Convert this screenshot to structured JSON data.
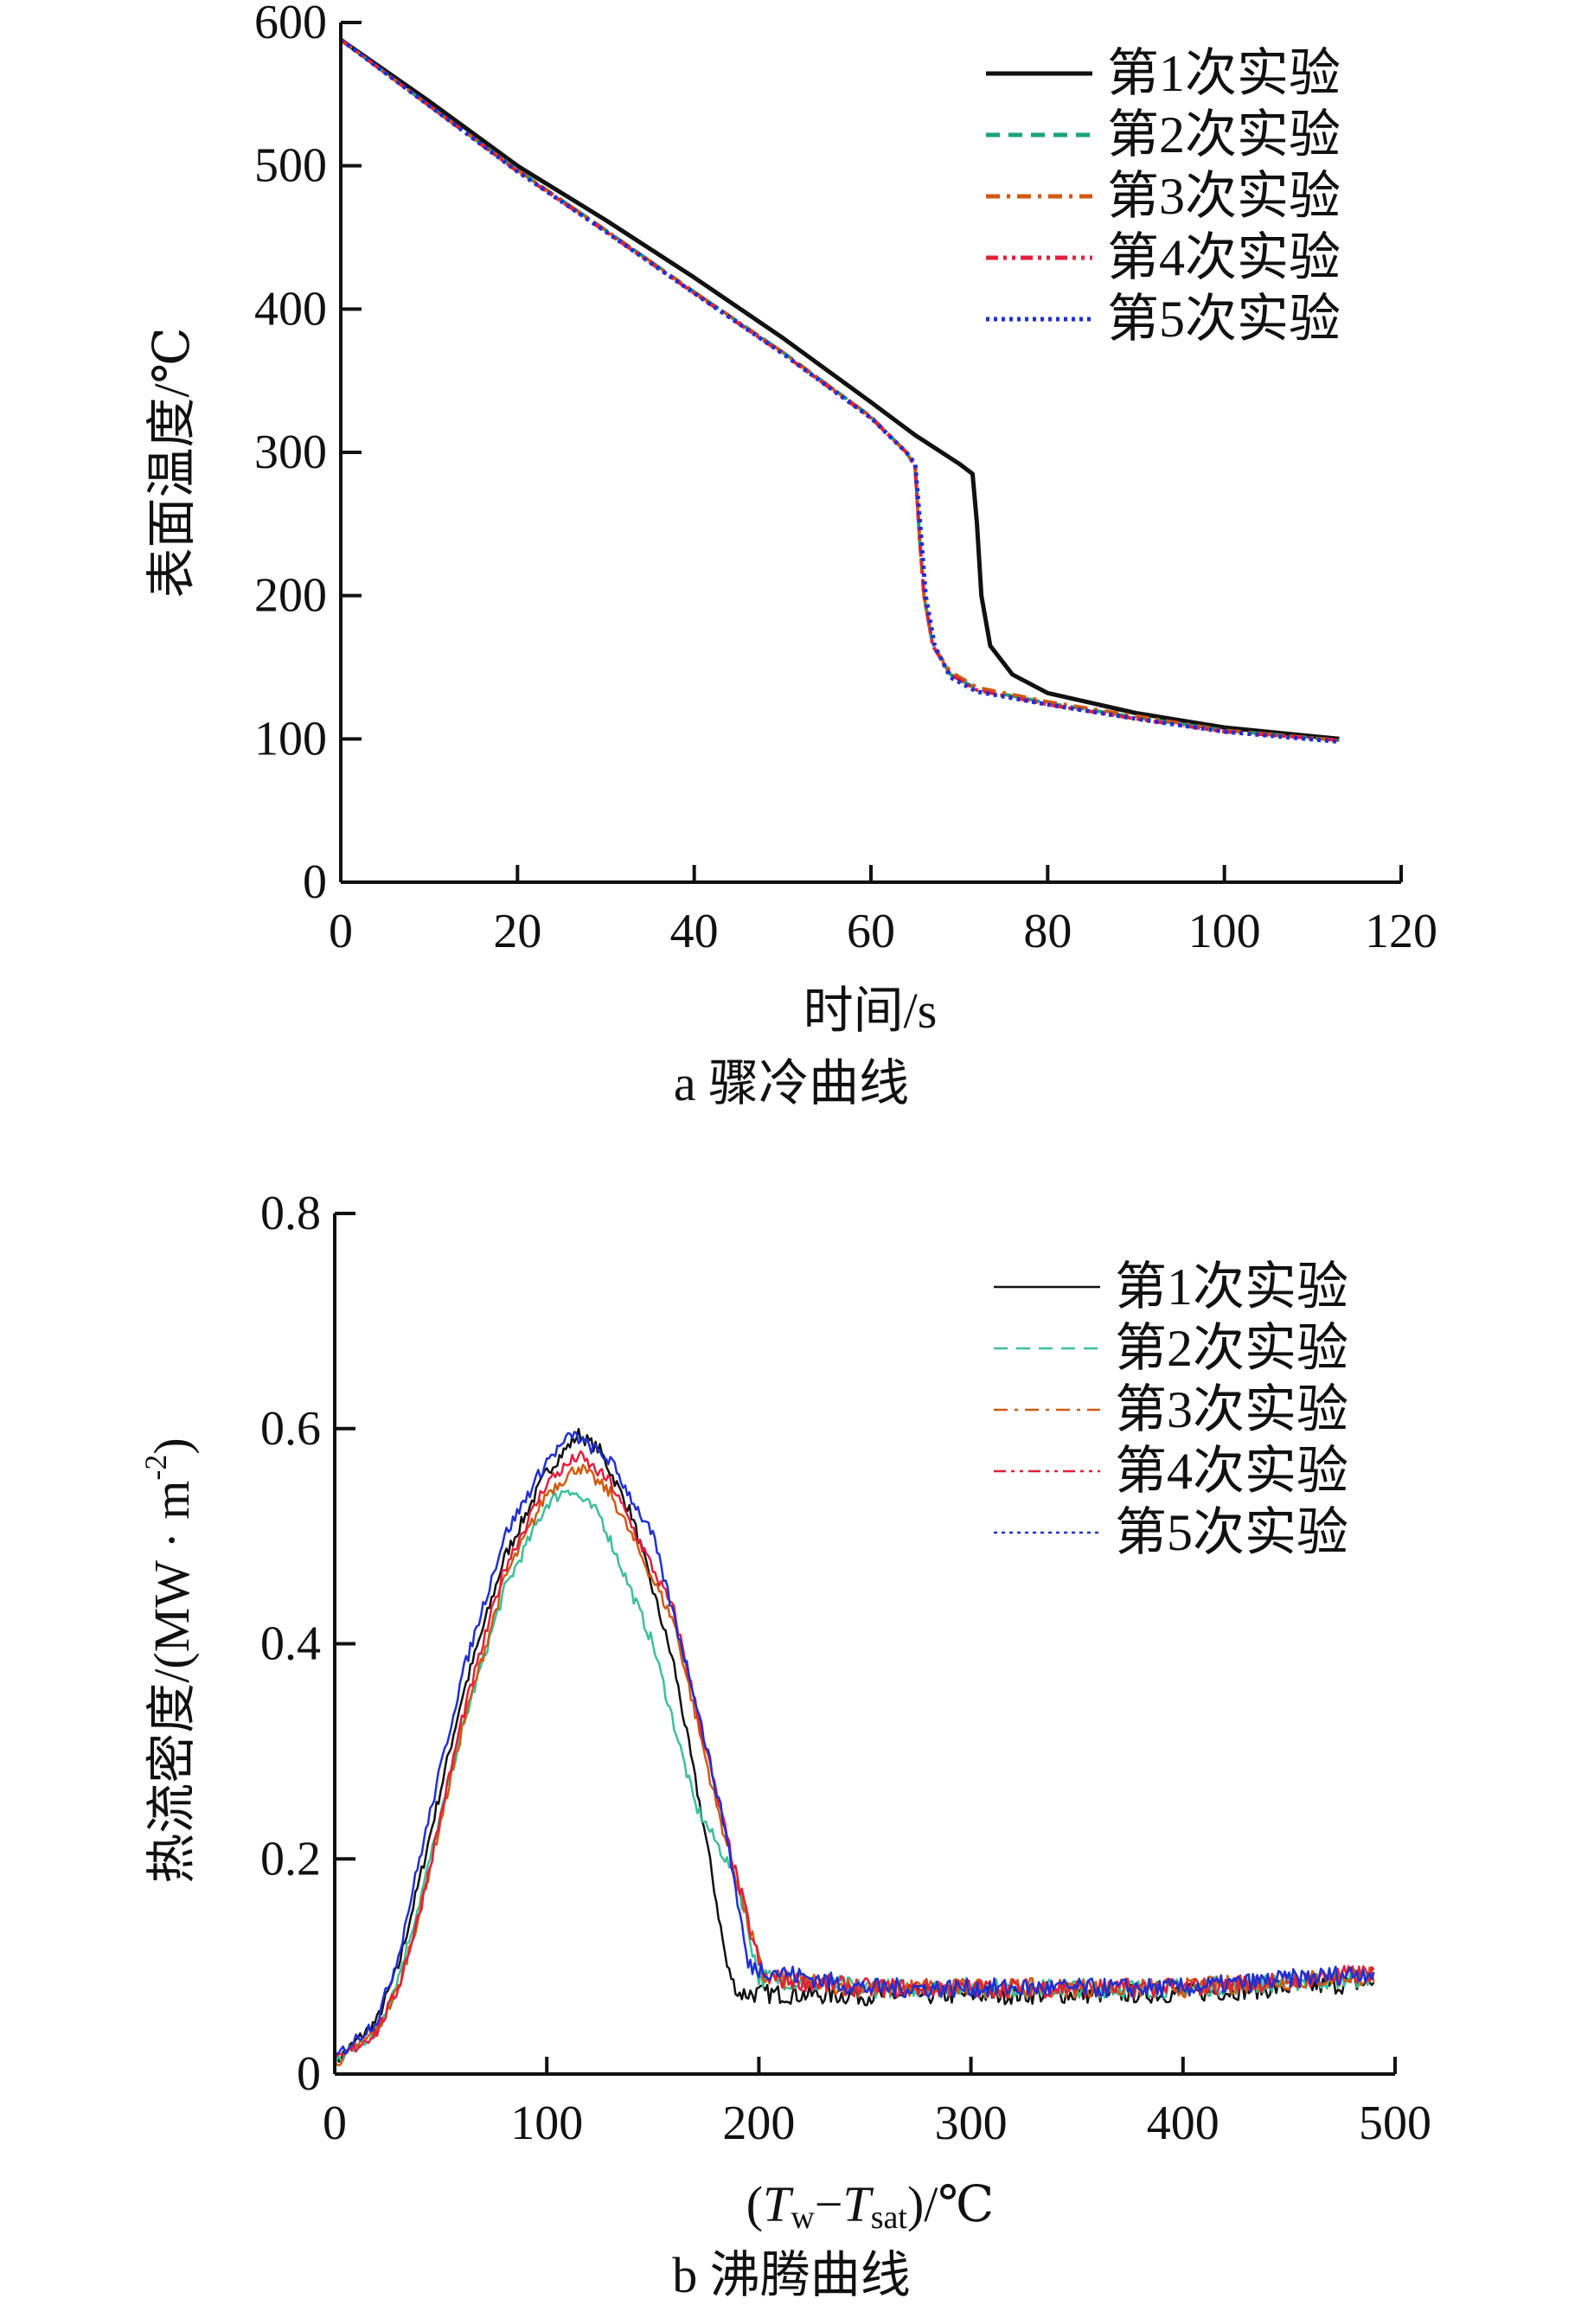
{
  "chart_data": [
    {
      "type": "line",
      "caption": "a  骤冷曲线",
      "xlabel": "时间/s",
      "ylabel": "表面温度/℃",
      "xlim": [
        0,
        120
      ],
      "ylim": [
        0,
        600
      ],
      "xticks": [
        0,
        20,
        40,
        60,
        80,
        100,
        120
      ],
      "yticks": [
        0,
        100,
        200,
        300,
        400,
        500,
        600
      ],
      "grid": false,
      "legend_position": "top-right",
      "series": [
        {
          "name": "第1次实验",
          "color": "#111111",
          "dash": "solid",
          "points": [
            [
              0,
              588
            ],
            [
              10,
              545
            ],
            [
              20,
              500
            ],
            [
              30,
              462
            ],
            [
              40,
              422
            ],
            [
              50,
              380
            ],
            [
              60,
              335
            ],
            [
              65,
              312
            ],
            [
              70,
              292
            ],
            [
              71.5,
              285
            ],
            [
              72,
              250
            ],
            [
              72.5,
              200
            ],
            [
              73.5,
              165
            ],
            [
              76,
              145
            ],
            [
              80,
              132
            ],
            [
              90,
              118
            ],
            [
              100,
              108
            ],
            [
              113,
              100
            ]
          ]
        },
        {
          "name": "第2次实验",
          "color": "#1aa37a",
          "dash": "dashed",
          "points": [
            [
              0,
              588
            ],
            [
              10,
              542
            ],
            [
              20,
              497
            ],
            [
              30,
              455
            ],
            [
              40,
              412
            ],
            [
              50,
              370
            ],
            [
              60,
              325
            ],
            [
              64,
              300
            ],
            [
              65,
              290
            ],
            [
              65.5,
              240
            ],
            [
              66,
              200
            ],
            [
              67,
              165
            ],
            [
              69,
              145
            ],
            [
              72,
              135
            ],
            [
              80,
              125
            ],
            [
              90,
              115
            ],
            [
              100,
              106
            ],
            [
              113,
              99
            ]
          ]
        },
        {
          "name": "第3次实验",
          "color": "#d05a10",
          "dash": "dashdot",
          "points": [
            [
              0,
              588
            ],
            [
              10,
              542
            ],
            [
              20,
              497
            ],
            [
              30,
              455
            ],
            [
              40,
              412
            ],
            [
              50,
              370
            ],
            [
              60,
              325
            ],
            [
              64,
              300
            ],
            [
              65,
              290
            ],
            [
              65.5,
              240
            ],
            [
              66,
              200
            ],
            [
              67,
              165
            ],
            [
              69,
              147
            ],
            [
              72,
              136
            ],
            [
              80,
              126
            ],
            [
              90,
              116
            ],
            [
              100,
              106
            ],
            [
              113,
              99
            ]
          ]
        },
        {
          "name": "第4次实验",
          "color": "#e0203c",
          "dash": "dashdotdot",
          "points": [
            [
              0,
              588
            ],
            [
              10,
              542
            ],
            [
              20,
              496
            ],
            [
              30,
              454
            ],
            [
              40,
              411
            ],
            [
              50,
              369
            ],
            [
              60,
              324
            ],
            [
              64,
              300
            ],
            [
              65,
              290
            ],
            [
              65.5,
              240
            ],
            [
              66,
              200
            ],
            [
              67,
              165
            ],
            [
              69,
              145
            ],
            [
              72,
              134
            ],
            [
              80,
              124
            ],
            [
              90,
              114
            ],
            [
              100,
              105
            ],
            [
              113,
              99
            ]
          ]
        },
        {
          "name": "第5次实验",
          "color": "#2030d0",
          "dash": "dotted",
          "points": [
            [
              0,
              588
            ],
            [
              10,
              542
            ],
            [
              20,
              496
            ],
            [
              30,
              454
            ],
            [
              40,
              411
            ],
            [
              50,
              369
            ],
            [
              60,
              324
            ],
            [
              64,
              300
            ],
            [
              65,
              292
            ],
            [
              65.7,
              240
            ],
            [
              66.2,
              200
            ],
            [
              67.2,
              165
            ],
            [
              69,
              143
            ],
            [
              72,
              133
            ],
            [
              80,
              124
            ],
            [
              90,
              114
            ],
            [
              100,
              105
            ],
            [
              113,
              98
            ]
          ]
        }
      ]
    },
    {
      "type": "line",
      "caption": "b  沸腾曲线",
      "xlabel_parts": [
        "(",
        "T",
        "w",
        "−",
        "T",
        "sat",
        ")/℃"
      ],
      "ylabel": "热流密度/(MW · m",
      "ylabel_sup": "-2",
      "ylabel_end": ")",
      "xlim": [
        0,
        500
      ],
      "ylim": [
        0,
        0.8
      ],
      "xticks": [
        0,
        100,
        200,
        300,
        400,
        500
      ],
      "yticks": [
        "0",
        "0.2",
        "0.4",
        "0.6",
        "0.8"
      ],
      "grid": false,
      "legend_position": "top-right",
      "series": [
        {
          "name": "第1次实验",
          "color": "#111111",
          "dash": "solid",
          "points": [
            [
              0,
              0.01
            ],
            [
              20,
              0.05
            ],
            [
              30,
              0.1
            ],
            [
              40,
              0.18
            ],
            [
              60,
              0.35
            ],
            [
              80,
              0.48
            ],
            [
              100,
              0.56
            ],
            [
              115,
              0.595
            ],
            [
              125,
              0.58
            ],
            [
              140,
              0.52
            ],
            [
              160,
              0.38
            ],
            [
              175,
              0.22
            ],
            [
              185,
              0.1
            ],
            [
              190,
              0.075
            ],
            [
              250,
              0.073
            ],
            [
              400,
              0.075
            ],
            [
              490,
              0.085
            ]
          ]
        },
        {
          "name": "第2次实验",
          "color": "#3cbf9a",
          "dash": "dashed",
          "points": [
            [
              0,
              0.01
            ],
            [
              20,
              0.04
            ],
            [
              30,
              0.09
            ],
            [
              40,
              0.16
            ],
            [
              60,
              0.32
            ],
            [
              80,
              0.45
            ],
            [
              100,
              0.53
            ],
            [
              110,
              0.545
            ],
            [
              125,
              0.52
            ],
            [
              150,
              0.4
            ],
            [
              170,
              0.25
            ],
            [
              190,
              0.18
            ],
            [
              200,
              0.09
            ],
            [
              250,
              0.08
            ],
            [
              400,
              0.08
            ],
            [
              490,
              0.09
            ]
          ]
        },
        {
          "name": "第3次实验",
          "color": "#d05a10",
          "dash": "dashdot",
          "points": [
            [
              0,
              0.01
            ],
            [
              20,
              0.04
            ],
            [
              30,
              0.08
            ],
            [
              40,
              0.15
            ],
            [
              60,
              0.32
            ],
            [
              80,
              0.46
            ],
            [
              100,
              0.54
            ],
            [
              115,
              0.565
            ],
            [
              130,
              0.54
            ],
            [
              160,
              0.42
            ],
            [
              180,
              0.25
            ],
            [
              195,
              0.14
            ],
            [
              202,
              0.09
            ],
            [
              250,
              0.08
            ],
            [
              400,
              0.08
            ],
            [
              490,
              0.092
            ]
          ]
        },
        {
          "name": "第4次实验",
          "color": "#e0203c",
          "dash": "dashdotdot",
          "points": [
            [
              0,
              0.01
            ],
            [
              20,
              0.04
            ],
            [
              30,
              0.08
            ],
            [
              40,
              0.15
            ],
            [
              60,
              0.33
            ],
            [
              80,
              0.47
            ],
            [
              100,
              0.55
            ],
            [
              115,
              0.575
            ],
            [
              130,
              0.55
            ],
            [
              160,
              0.43
            ],
            [
              180,
              0.26
            ],
            [
              195,
              0.14
            ],
            [
              202,
              0.09
            ],
            [
              250,
              0.08
            ],
            [
              400,
              0.08
            ],
            [
              490,
              0.094
            ]
          ]
        },
        {
          "name": "第5次实验",
          "color": "#2030d0",
          "dash": "dotted",
          "points": [
            [
              0,
              0.015
            ],
            [
              20,
              0.05
            ],
            [
              30,
              0.11
            ],
            [
              40,
              0.2
            ],
            [
              60,
              0.37
            ],
            [
              80,
              0.5
            ],
            [
              100,
              0.57
            ],
            [
              112,
              0.595
            ],
            [
              130,
              0.57
            ],
            [
              150,
              0.5
            ],
            [
              170,
              0.35
            ],
            [
              185,
              0.22
            ],
            [
              195,
              0.1
            ],
            [
              250,
              0.08
            ],
            [
              400,
              0.08
            ],
            [
              490,
              0.095
            ]
          ]
        }
      ]
    }
  ]
}
